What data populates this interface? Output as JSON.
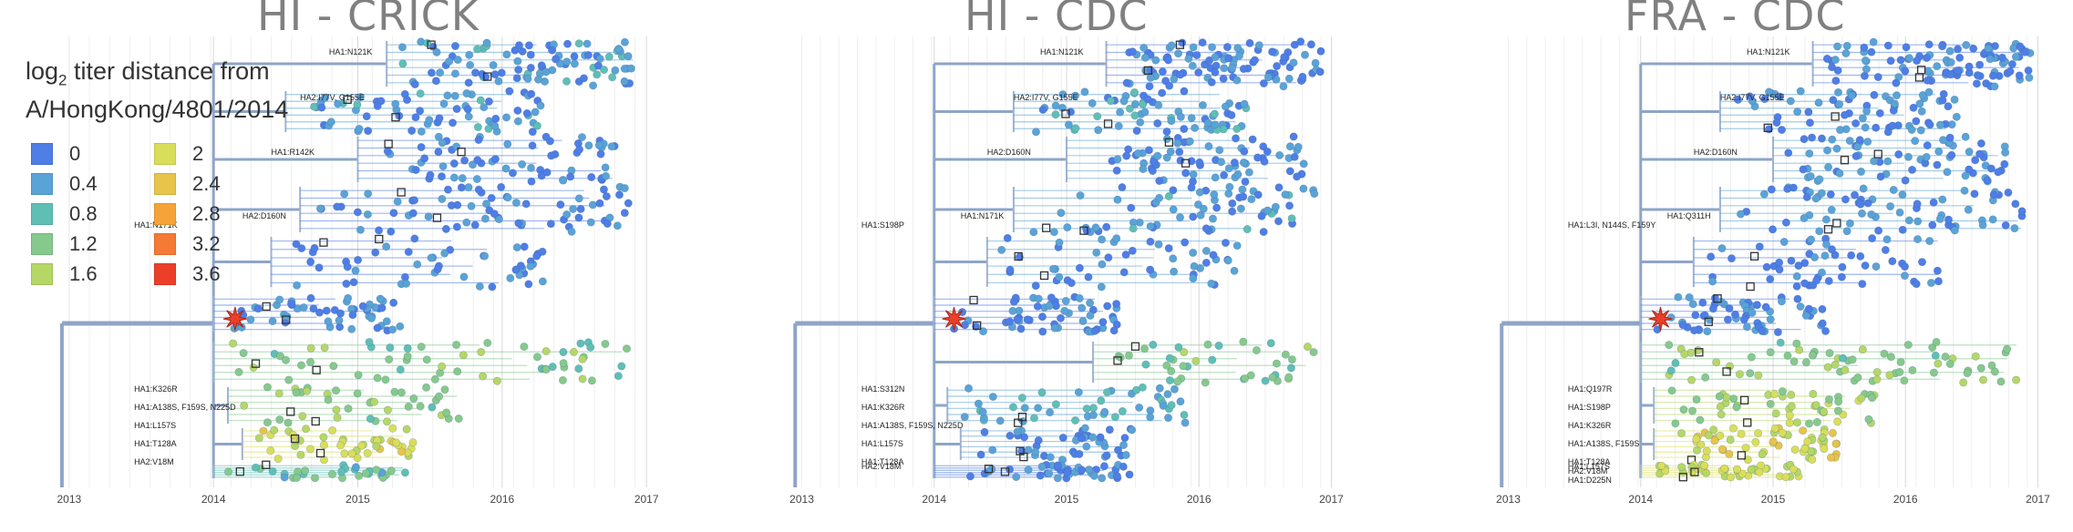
{
  "figure": {
    "legend": {
      "title_line1": "titer distance from",
      "title_prefix": "log",
      "title_sub": "2",
      "title_line2": "A/HongKong/4801/2014",
      "entries": [
        {
          "label": "0",
          "color": "#4e7ee6"
        },
        {
          "label": "0.4",
          "color": "#5aa3d6"
        },
        {
          "label": "0.8",
          "color": "#5fbfb5"
        },
        {
          "label": "1.2",
          "color": "#86c98c"
        },
        {
          "label": "1.6",
          "color": "#b5d766"
        },
        {
          "label": "2",
          "color": "#d9de5a"
        },
        {
          "label": "2.4",
          "color": "#e8c44a"
        },
        {
          "label": "2.8",
          "color": "#f5a43a"
        },
        {
          "label": "3.2",
          "color": "#f47a35"
        },
        {
          "label": "3.6",
          "color": "#ec3f2a"
        }
      ]
    }
  },
  "chart_data": [
    {
      "type": "scatter",
      "title": "HI - CRICK",
      "x_ticks": [
        "2013",
        "2014",
        "2015",
        "2016",
        "2017"
      ],
      "xlim": [
        2012.9,
        2017.1
      ],
      "color_scale": "log2 titer distance from A/HongKong/4801/2014",
      "clade_labels": [
        "HA1:N121K",
        "HA2:I77V, G155E",
        "HA1:R142K",
        "HA2:D160N",
        "HA1:N171K",
        "HA1:K326R",
        "HA1:A138S, F159S, N225D",
        "HA1:L157S",
        "HA1:T128A",
        "HA2:V18M"
      ],
      "clades": [
        {
          "start": 2015.2,
          "end": 2016.95,
          "mean": 0.35,
          "n": 95
        },
        {
          "start": 2014.5,
          "end": 2016.3,
          "mean": 0.3,
          "n": 70
        },
        {
          "start": 2015.0,
          "end": 2016.8,
          "mean": 0.15,
          "n": 65
        },
        {
          "start": 2014.6,
          "end": 2016.9,
          "mean": 0.15,
          "n": 70
        },
        {
          "start": 2014.4,
          "end": 2016.3,
          "mean": 0.1,
          "n": 50
        },
        {
          "start": 2014.0,
          "end": 2015.3,
          "mean": 0.1,
          "n": 55
        },
        {
          "start": 2014.0,
          "end": 2016.9,
          "mean": 1.2,
          "n": 60
        },
        {
          "start": 2014.1,
          "end": 2015.7,
          "mean": 1.3,
          "n": 40
        },
        {
          "start": 2014.2,
          "end": 2015.4,
          "mean": 1.9,
          "n": 45
        },
        {
          "start": 2014.0,
          "end": 2015.4,
          "mean": 0.9,
          "n": 30
        }
      ]
    },
    {
      "type": "scatter",
      "title": "HI - CDC",
      "x_ticks": [
        "2013",
        "2014",
        "2015",
        "2016",
        "2017"
      ],
      "xlim": [
        2012.9,
        2017.1
      ],
      "color_scale": "log2 titer distance from A/HongKong/4801/2014",
      "clade_labels": [
        "HA1:N121K",
        "HA2:I77V, G155E",
        "HA2:D160N",
        "HA1:N171K",
        "HA1:S198P",
        "HA1:S312N",
        "HA1:K326R",
        "HA1:A138S, F159S, N225D",
        "HA1:L157S",
        "HA1:T128A",
        "HA2:V18M"
      ],
      "clades": [
        {
          "start": 2015.3,
          "end": 2016.95,
          "mean": 0.1,
          "n": 100
        },
        {
          "start": 2014.6,
          "end": 2016.4,
          "mean": 0.4,
          "n": 70
        },
        {
          "start": 2015.0,
          "end": 2016.8,
          "mean": 0.2,
          "n": 70
        },
        {
          "start": 2014.6,
          "end": 2016.9,
          "mean": 0.3,
          "n": 70
        },
        {
          "start": 2014.4,
          "end": 2016.3,
          "mean": 0.2,
          "n": 50
        },
        {
          "start": 2014.0,
          "end": 2015.4,
          "mean": 0.1,
          "n": 60
        },
        {
          "start": 2015.2,
          "end": 2016.9,
          "mean": 1.1,
          "n": 40
        },
        {
          "start": 2014.1,
          "end": 2015.9,
          "mean": 0.6,
          "n": 50
        },
        {
          "start": 2014.2,
          "end": 2015.5,
          "mean": 0.2,
          "n": 45
        },
        {
          "start": 2014.0,
          "end": 2015.5,
          "mean": 0.1,
          "n": 40
        }
      ]
    },
    {
      "type": "scatter",
      "title": "FRA - CDC",
      "x_ticks": [
        "2013",
        "2014",
        "2015",
        "2016",
        "2017"
      ],
      "xlim": [
        2012.9,
        2017.1
      ],
      "color_scale": "log2 titer distance from A/HongKong/4801/2014",
      "clade_labels": [
        "HA1:N121K",
        "HA2:I77V, G155E",
        "HA2:D160N",
        "HA1:Q311H",
        "HA1:L3I, N144S, F159Y",
        "HA1:Q197R",
        "HA1:S198P",
        "HA1:K326R",
        "HA1:A138S, F159S",
        "HA1:T128A",
        "HA1:L157S",
        "HA2:V18M",
        "HA1:D225N"
      ],
      "clades": [
        {
          "start": 2015.3,
          "end": 2016.95,
          "mean": 0.15,
          "n": 100
        },
        {
          "start": 2014.6,
          "end": 2016.4,
          "mean": 0.2,
          "n": 70
        },
        {
          "start": 2015.0,
          "end": 2016.8,
          "mean": 0.2,
          "n": 70
        },
        {
          "start": 2014.6,
          "end": 2016.9,
          "mean": 0.2,
          "n": 70
        },
        {
          "start": 2014.4,
          "end": 2016.3,
          "mean": 0.15,
          "n": 55
        },
        {
          "start": 2014.0,
          "end": 2015.4,
          "mean": 0.1,
          "n": 60
        },
        {
          "start": 2014.0,
          "end": 2016.9,
          "mean": 1.3,
          "n": 70
        },
        {
          "start": 2014.1,
          "end": 2015.8,
          "mean": 1.5,
          "n": 50
        },
        {
          "start": 2014.1,
          "end": 2015.5,
          "mean": 2.0,
          "n": 60
        },
        {
          "start": 2014.0,
          "end": 2015.2,
          "mean": 1.8,
          "n": 40
        }
      ]
    }
  ]
}
